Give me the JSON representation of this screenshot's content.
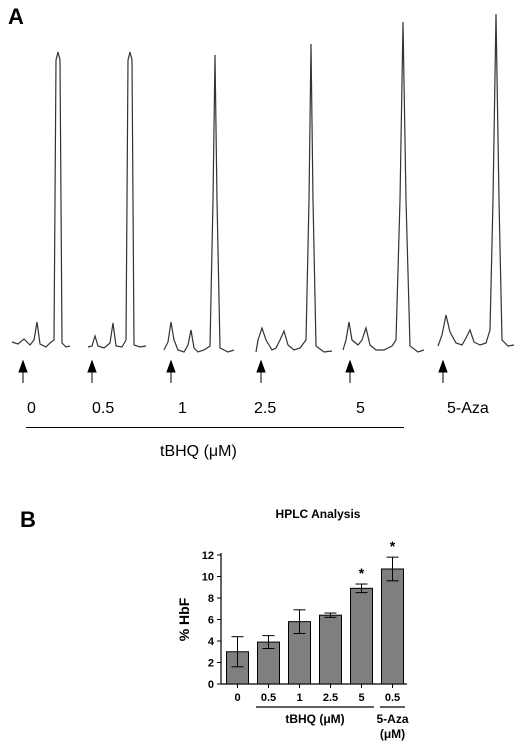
{
  "panel_a": {
    "letter": "A",
    "trace_labels": [
      "0",
      "0.5",
      "1",
      "2.5",
      "5",
      "5-Aza"
    ],
    "treatment_label": "tBHQ (μM)"
  },
  "panel_b": {
    "letter": "B"
  },
  "chart_data": {
    "type": "bar",
    "title": "HPLC Analysis",
    "ylabel": "% HbF",
    "xlabel": "",
    "ylim": [
      0,
      12
    ],
    "yticks": [
      0,
      2,
      4,
      6,
      8,
      10,
      12
    ],
    "categories": [
      "0",
      "0.5",
      "1",
      "2.5",
      "5",
      "0.5"
    ],
    "values": [
      3.0,
      3.9,
      5.8,
      6.4,
      8.9,
      10.7
    ],
    "errors": [
      1.4,
      0.6,
      1.1,
      0.2,
      0.4,
      1.1
    ],
    "significance": [
      "",
      "",
      "",
      "",
      "*",
      "*"
    ],
    "group_labels": [
      {
        "text": "tBHQ (μM)",
        "from": 1,
        "to": 4
      },
      {
        "text": "5-Aza",
        "text2": "(μM)",
        "from": 5,
        "to": 5
      }
    ],
    "bar_color": "#7f7f7f",
    "grid": false
  }
}
